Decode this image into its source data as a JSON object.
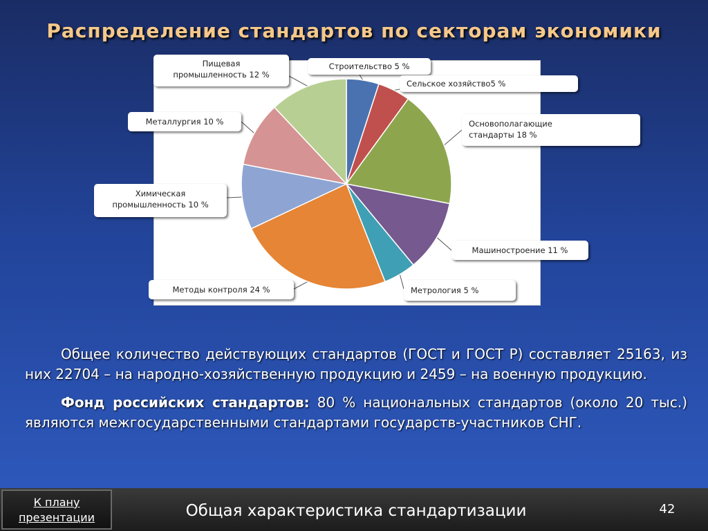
{
  "slide": {
    "title": "Распределение стандартов по секторам экономики"
  },
  "chart_data": {
    "type": "pie",
    "title": "",
    "start_angle_deg": 0,
    "direction": "clockwise",
    "slices": [
      {
        "label": "Строительство 5 %",
        "value": 5,
        "color": "#4a72b0"
      },
      {
        "label": "Сельское хозяйство5 %",
        "value": 5,
        "color": "#c0504d"
      },
      {
        "label": "Основополагающие стандарты  18 %",
        "value": 18,
        "color": "#8da64e"
      },
      {
        "label": "Машиностроение  11 %",
        "value": 11,
        "color": "#76598f"
      },
      {
        "label": "Метрология  5 %",
        "value": 5,
        "color": "#3f9fb4"
      },
      {
        "label": "Методы контроля 24 %",
        "value": 24,
        "color": "#e58535"
      },
      {
        "label": "Химическая промышленность  10 %",
        "value": 10,
        "color": "#8ea5d3"
      },
      {
        "label": "Металлургия  10 %",
        "value": 10,
        "color": "#d69393"
      },
      {
        "label": "Пищевая промышленность  12 %",
        "value": 12,
        "color": "#b8cf93"
      }
    ],
    "callouts": {
      "construction": "Строительство 5 %",
      "agriculture": "Сельское хозяйство5 %",
      "fundamental_line1": "Основополагающие",
      "fundamental_line2": "стандарты  18 %",
      "machinery": "Машиностроение  11 %",
      "metrology": "Метрология  5 %",
      "control": "Методы контроля 24 %",
      "chemical_line1": "Химическая",
      "chemical_line2": "промышленность  10 %",
      "metallurgy": "Металлургия  10 %",
      "food_line1": "Пищевая",
      "food_line2": "промышленность  12 %"
    }
  },
  "body": {
    "paragraph1": "Общее количество действующих стандартов (ГОСТ и ГОСТ Р) составляет 25163, из  них 22704 – на народно-хозяйственную продукцию и 2459 – на военную продукцию.",
    "paragraph2_bold": "Фонд российских стандартов:",
    "paragraph2_rest": " 80 % национальных стандартов (около 20 тыс.) являются межгосударственными стандартами государств-участников СНГ."
  },
  "footer": {
    "back_line1": "К плану",
    "back_line2": "презентации",
    "title": "Общая характеристика стандартизации",
    "page_number": "42"
  }
}
